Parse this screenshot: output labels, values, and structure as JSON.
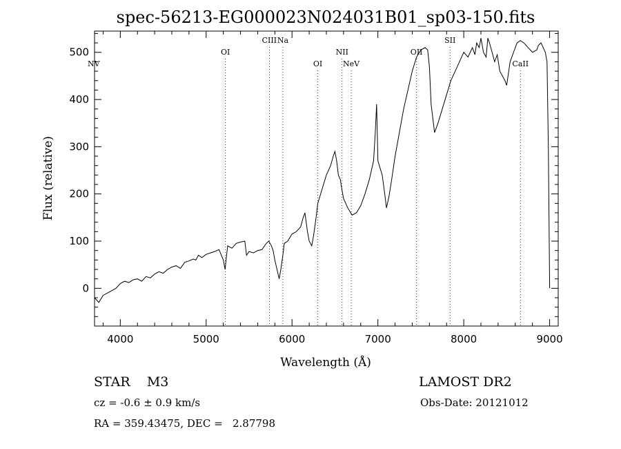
{
  "chart_data": {
    "type": "line",
    "title": "spec-56213-EG000023N024031B01_sp03-150.fits",
    "xlabel": "Wavelength (Å)",
    "ylabel": "Flux (relative)",
    "xlim": [
      3700,
      9100
    ],
    "ylim": [
      -80,
      545
    ],
    "x_ticks": [
      4000,
      5000,
      6000,
      7000,
      8000,
      9000
    ],
    "y_ticks": [
      0,
      100,
      200,
      300,
      400,
      500
    ],
    "grid": false,
    "series": [
      {
        "x": [
          3700,
          3750,
          3800,
          3850,
          3900,
          3950,
          4000,
          4050,
          4100,
          4150,
          4200,
          4250,
          4300,
          4350,
          4400,
          4450,
          4500,
          4550,
          4600,
          4650,
          4700,
          4750,
          4800,
          4850,
          4880,
          4910,
          4950,
          5000,
          5050,
          5100,
          5150,
          5200,
          5220,
          5250,
          5300,
          5350,
          5400,
          5450,
          5470,
          5500,
          5550,
          5600,
          5650,
          5700,
          5730,
          5760,
          5780,
          5800,
          5850,
          5870,
          5893,
          5910,
          5950,
          6000,
          6050,
          6100,
          6130,
          6150,
          6180,
          6200,
          6230,
          6250,
          6280,
          6300,
          6350,
          6400,
          6450,
          6480,
          6500,
          6520,
          6540,
          6563,
          6580,
          6600,
          6650,
          6700,
          6750,
          6800,
          6850,
          6900,
          6950,
          6970,
          6985,
          7000,
          7050,
          7080,
          7100,
          7130,
          7160,
          7200,
          7250,
          7300,
          7350,
          7400,
          7450,
          7500,
          7550,
          7580,
          7600,
          7610,
          7620,
          7640,
          7660,
          7680,
          7700,
          7750,
          7800,
          7850,
          7900,
          7950,
          8000,
          8050,
          8100,
          8130,
          8150,
          8180,
          8200,
          8230,
          8260,
          8280,
          8300,
          8330,
          8360,
          8390,
          8420,
          8450,
          8480,
          8500,
          8540,
          8580,
          8620,
          8660,
          8700,
          8750,
          8800,
          8850,
          8870,
          8900,
          8950,
          8970,
          8985,
          9000
        ],
        "y": [
          -20,
          -30,
          -15,
          -10,
          -5,
          0,
          10,
          15,
          12,
          18,
          20,
          15,
          25,
          22,
          30,
          35,
          32,
          40,
          45,
          48,
          42,
          55,
          58,
          62,
          60,
          70,
          65,
          72,
          75,
          78,
          82,
          60,
          40,
          90,
          85,
          95,
          98,
          100,
          70,
          78,
          75,
          80,
          82,
          95,
          100,
          90,
          80,
          60,
          20,
          40,
          70,
          95,
          100,
          115,
          120,
          130,
          150,
          160,
          120,
          100,
          90,
          110,
          150,
          180,
          210,
          240,
          260,
          280,
          290,
          270,
          240,
          230,
          210,
          190,
          170,
          155,
          160,
          175,
          200,
          230,
          270,
          330,
          390,
          270,
          240,
          200,
          170,
          195,
          230,
          280,
          330,
          380,
          420,
          460,
          490,
          505,
          510,
          505,
          470,
          430,
          390,
          360,
          330,
          340,
          350,
          380,
          410,
          440,
          460,
          480,
          500,
          490,
          510,
          495,
          520,
          510,
          530,
          500,
          490,
          530,
          520,
          500,
          480,
          495,
          460,
          450,
          440,
          430,
          480,
          500,
          520,
          525,
          520,
          510,
          500,
          505,
          515,
          520,
          500,
          480,
          300,
          0
        ]
      }
    ],
    "annotations": [
      {
        "label": "NV",
        "x": 3700,
        "row": "lower"
      },
      {
        "label": "OI",
        "x": 5224,
        "row": "upper"
      },
      {
        "label": "CIII",
        "x": 5736,
        "row": "top"
      },
      {
        "label": "Na",
        "x": 5893,
        "row": "top"
      },
      {
        "label": "OI",
        "x": 6300,
        "row": "lower"
      },
      {
        "label": "NII",
        "x": 6583,
        "row": "upper"
      },
      {
        "label": "NeV",
        "x": 6690,
        "row": "lower"
      },
      {
        "label": "OII",
        "x": 7450,
        "row": "upper"
      },
      {
        "label": "SII",
        "x": 7840,
        "row": "top"
      },
      {
        "label": "CaII",
        "x": 8660,
        "row": "lower"
      }
    ]
  },
  "footer": {
    "object": "STAR    M3",
    "survey": "LAMOST DR2",
    "cz": "cz = -0.6 ± 0.9 km/s",
    "obsdate": "Obs-Date: 20121012",
    "radec": "RA = 359.43475, DEC =   2.87798"
  }
}
